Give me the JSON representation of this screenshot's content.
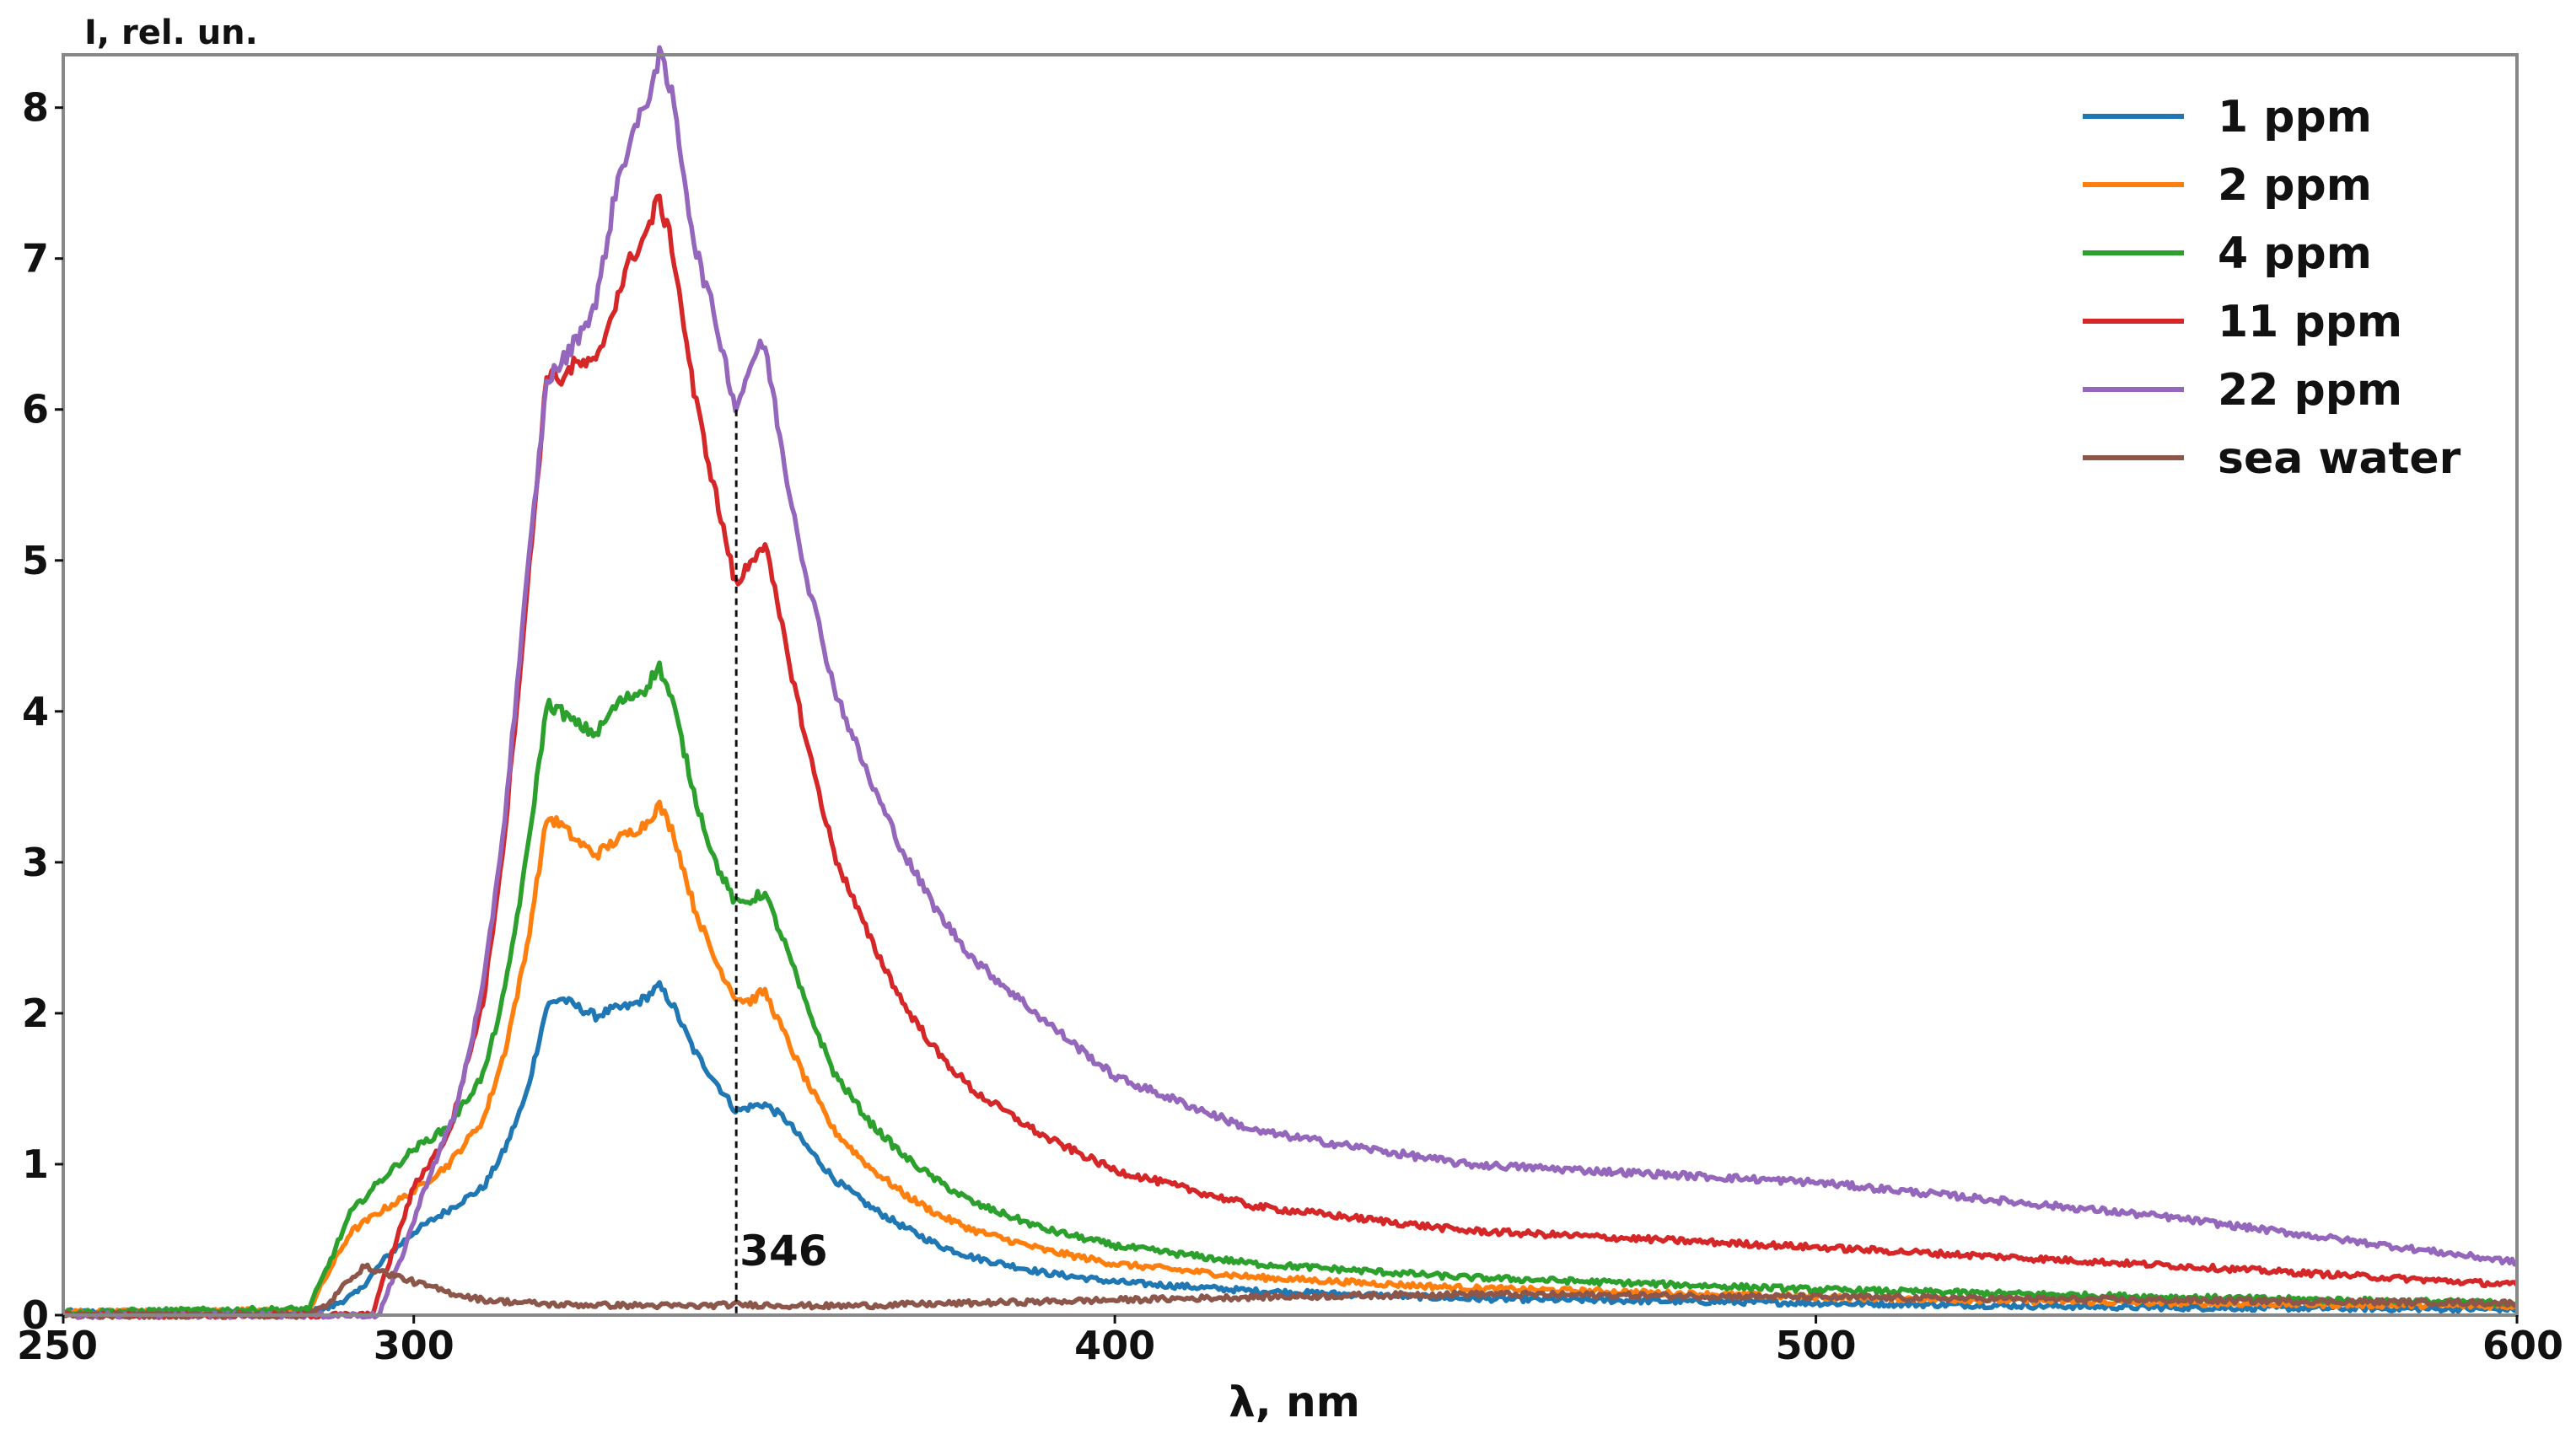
{
  "chart_data": {
    "type": "line",
    "title": "",
    "xlabel": "λ, nm",
    "ylabel": "I, rel. un.",
    "xlim": [
      250,
      600
    ],
    "ylim": [
      0,
      8.35
    ],
    "xticks": [
      250,
      300,
      400,
      500,
      600
    ],
    "yticks": [
      0,
      1,
      2,
      3,
      4,
      5,
      6,
      7,
      8
    ],
    "grid": false,
    "legend_position": "top-right",
    "annotation": {
      "x": 346,
      "y": 6.0,
      "label": "346",
      "style": "dashed vertical line"
    },
    "series": [
      {
        "name": "1 ppm",
        "color": "#1f77b4",
        "points": [
          [
            250,
            0.02
          ],
          [
            285,
            0.02
          ],
          [
            288,
            0.05
          ],
          [
            292,
            0.15
          ],
          [
            296,
            0.38
          ],
          [
            300,
            0.55
          ],
          [
            305,
            0.7
          ],
          [
            310,
            0.85
          ],
          [
            313,
            1.1
          ],
          [
            316,
            1.45
          ],
          [
            319,
            2.05
          ],
          [
            321,
            2.1
          ],
          [
            323,
            2.05
          ],
          [
            326,
            1.98
          ],
          [
            328,
            2.02
          ],
          [
            331,
            2.05
          ],
          [
            333,
            2.1
          ],
          [
            335,
            2.18
          ],
          [
            337,
            2.05
          ],
          [
            340,
            1.75
          ],
          [
            343,
            1.55
          ],
          [
            346,
            1.35
          ],
          [
            348,
            1.38
          ],
          [
            350,
            1.4
          ],
          [
            353,
            1.3
          ],
          [
            356,
            1.12
          ],
          [
            360,
            0.9
          ],
          [
            365,
            0.72
          ],
          [
            370,
            0.58
          ],
          [
            375,
            0.46
          ],
          [
            380,
            0.38
          ],
          [
            390,
            0.28
          ],
          [
            400,
            0.22
          ],
          [
            420,
            0.16
          ],
          [
            450,
            0.11
          ],
          [
            500,
            0.08
          ],
          [
            550,
            0.05
          ],
          [
            600,
            0.04
          ]
        ]
      },
      {
        "name": "2 ppm",
        "color": "#ff7f0e",
        "points": [
          [
            250,
            0.02
          ],
          [
            285,
            0.03
          ],
          [
            288,
            0.3
          ],
          [
            291,
            0.55
          ],
          [
            295,
            0.68
          ],
          [
            300,
            0.82
          ],
          [
            305,
            1.0
          ],
          [
            310,
            1.3
          ],
          [
            313,
            1.75
          ],
          [
            316,
            2.4
          ],
          [
            319,
            3.3
          ],
          [
            321,
            3.25
          ],
          [
            323,
            3.15
          ],
          [
            326,
            3.05
          ],
          [
            329,
            3.15
          ],
          [
            331,
            3.2
          ],
          [
            333,
            3.25
          ],
          [
            335,
            3.38
          ],
          [
            337,
            3.2
          ],
          [
            340,
            2.7
          ],
          [
            343,
            2.35
          ],
          [
            346,
            2.1
          ],
          [
            348,
            2.08
          ],
          [
            350,
            2.15
          ],
          [
            353,
            1.85
          ],
          [
            356,
            1.55
          ],
          [
            360,
            1.22
          ],
          [
            365,
            0.98
          ],
          [
            370,
            0.8
          ],
          [
            375,
            0.66
          ],
          [
            380,
            0.56
          ],
          [
            390,
            0.43
          ],
          [
            400,
            0.34
          ],
          [
            420,
            0.25
          ],
          [
            450,
            0.18
          ],
          [
            500,
            0.12
          ],
          [
            550,
            0.08
          ],
          [
            600,
            0.06
          ]
        ]
      },
      {
        "name": "4 ppm",
        "color": "#2ca02c",
        "points": [
          [
            250,
            0.02
          ],
          [
            285,
            0.04
          ],
          [
            288,
            0.35
          ],
          [
            291,
            0.68
          ],
          [
            295,
            0.88
          ],
          [
            300,
            1.1
          ],
          [
            305,
            1.25
          ],
          [
            310,
            1.6
          ],
          [
            313,
            2.15
          ],
          [
            316,
            3.0
          ],
          [
            319,
            4.05
          ],
          [
            321,
            4.0
          ],
          [
            323,
            3.92
          ],
          [
            326,
            3.85
          ],
          [
            329,
            4.05
          ],
          [
            331,
            4.1
          ],
          [
            333,
            4.15
          ],
          [
            335,
            4.3
          ],
          [
            337,
            4.05
          ],
          [
            340,
            3.45
          ],
          [
            343,
            3.0
          ],
          [
            346,
            2.72
          ],
          [
            348,
            2.75
          ],
          [
            350,
            2.8
          ],
          [
            353,
            2.45
          ],
          [
            356,
            2.05
          ],
          [
            360,
            1.6
          ],
          [
            365,
            1.28
          ],
          [
            370,
            1.05
          ],
          [
            375,
            0.88
          ],
          [
            380,
            0.74
          ],
          [
            390,
            0.57
          ],
          [
            400,
            0.46
          ],
          [
            420,
            0.34
          ],
          [
            450,
            0.25
          ],
          [
            500,
            0.17
          ],
          [
            550,
            0.12
          ],
          [
            600,
            0.08
          ]
        ]
      },
      {
        "name": "11 ppm",
        "color": "#d62728",
        "points": [
          [
            250,
            0.0
          ],
          [
            290,
            0.0
          ],
          [
            294,
            0.0
          ],
          [
            297,
            0.42
          ],
          [
            300,
            0.85
          ],
          [
            305,
            1.2
          ],
          [
            310,
            2.1
          ],
          [
            313,
            3.2
          ],
          [
            316,
            4.7
          ],
          [
            319,
            6.25
          ],
          [
            321,
            6.2
          ],
          [
            323,
            6.3
          ],
          [
            326,
            6.3
          ],
          [
            329,
            6.75
          ],
          [
            331,
            7.0
          ],
          [
            333,
            7.15
          ],
          [
            335,
            7.4
          ],
          [
            337,
            7.05
          ],
          [
            340,
            6.1
          ],
          [
            343,
            5.45
          ],
          [
            346,
            4.82
          ],
          [
            348,
            5.0
          ],
          [
            350,
            5.12
          ],
          [
            353,
            4.45
          ],
          [
            356,
            3.8
          ],
          [
            360,
            3.05
          ],
          [
            365,
            2.5
          ],
          [
            370,
            2.05
          ],
          [
            375,
            1.72
          ],
          [
            380,
            1.48
          ],
          [
            390,
            1.18
          ],
          [
            400,
            0.96
          ],
          [
            420,
            0.72
          ],
          [
            450,
            0.56
          ],
          [
            500,
            0.45
          ],
          [
            550,
            0.33
          ],
          [
            600,
            0.2
          ]
        ]
      },
      {
        "name": "22 ppm",
        "color": "#9467bd",
        "points": [
          [
            250,
            0.0
          ],
          [
            292,
            0.0
          ],
          [
            295,
            0.0
          ],
          [
            298,
            0.35
          ],
          [
            302,
            0.9
          ],
          [
            306,
            1.35
          ],
          [
            310,
            2.2
          ],
          [
            313,
            3.3
          ],
          [
            316,
            4.8
          ],
          [
            319,
            6.2
          ],
          [
            321,
            6.3
          ],
          [
            323,
            6.45
          ],
          [
            326,
            6.7
          ],
          [
            329,
            7.5
          ],
          [
            331,
            7.8
          ],
          [
            333,
            8.0
          ],
          [
            335,
            8.35
          ],
          [
            337,
            8.05
          ],
          [
            340,
            7.1
          ],
          [
            343,
            6.6
          ],
          [
            346,
            6.0
          ],
          [
            348,
            6.3
          ],
          [
            350,
            6.45
          ],
          [
            353,
            5.6
          ],
          [
            356,
            4.9
          ],
          [
            360,
            4.15
          ],
          [
            365,
            3.55
          ],
          [
            370,
            3.05
          ],
          [
            375,
            2.65
          ],
          [
            380,
            2.35
          ],
          [
            390,
            1.95
          ],
          [
            400,
            1.58
          ],
          [
            420,
            1.22
          ],
          [
            450,
            1.0
          ],
          [
            500,
            0.88
          ],
          [
            550,
            0.65
          ],
          [
            600,
            0.35
          ]
        ]
      },
      {
        "name": "sea water",
        "color": "#8c564b",
        "points": [
          [
            250,
            0.0
          ],
          [
            285,
            0.0
          ],
          [
            288,
            0.08
          ],
          [
            291,
            0.25
          ],
          [
            293,
            0.32
          ],
          [
            296,
            0.28
          ],
          [
            300,
            0.22
          ],
          [
            305,
            0.15
          ],
          [
            310,
            0.1
          ],
          [
            320,
            0.07
          ],
          [
            340,
            0.06
          ],
          [
            346,
            0.07
          ],
          [
            360,
            0.06
          ],
          [
            400,
            0.1
          ],
          [
            420,
            0.12
          ],
          [
            450,
            0.14
          ],
          [
            500,
            0.12
          ],
          [
            550,
            0.1
          ],
          [
            600,
            0.08
          ]
        ]
      }
    ]
  }
}
